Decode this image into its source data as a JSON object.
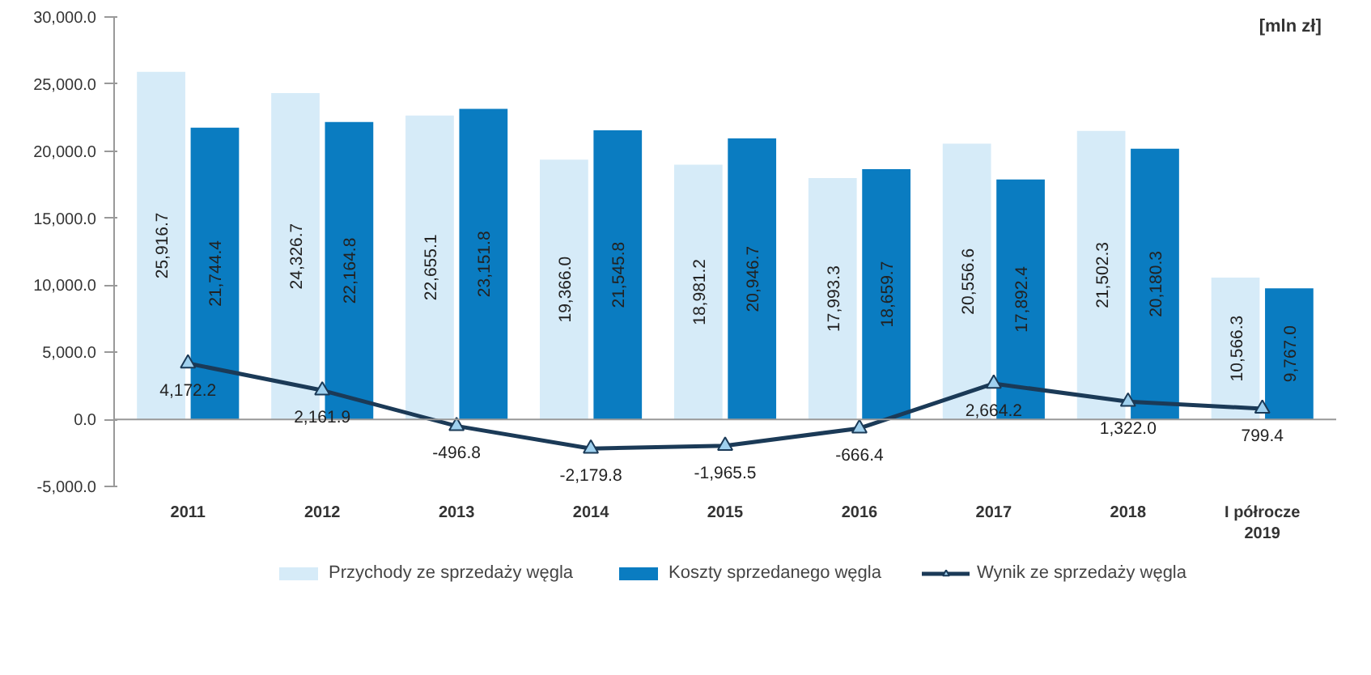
{
  "chart_data": {
    "type": "bar",
    "categories": [
      "2011",
      "2012",
      "2013",
      "2014",
      "2015",
      "2016",
      "2017",
      "2018",
      "I półrocze\n2019"
    ],
    "series": [
      {
        "name": "Przychody ze sprzedaży węgla",
        "color": "#d6ebf8",
        "values": [
          25916.7,
          24326.7,
          22655.1,
          19366.0,
          18981.2,
          17993.3,
          20556.6,
          21502.3,
          10566.3
        ],
        "value_labels": [
          "25,916.7",
          "24,326.7",
          "22,655.1",
          "19,366.0",
          "18,981.2",
          "17,993.3",
          "20,556.6",
          "21,502.3",
          "10,566.3"
        ]
      },
      {
        "name": "Koszty sprzedanego węgla",
        "color": "#0a7cc1",
        "values": [
          21744.4,
          22164.8,
          23151.8,
          21545.8,
          20946.7,
          18659.7,
          17892.4,
          20180.3,
          9767.0
        ],
        "value_labels": [
          "21,744.4",
          "22,164.8",
          "23,151.8",
          "21,545.8",
          "20,946.7",
          "18,659.7",
          "17,892.4",
          "20,180.3",
          "9,767.0"
        ]
      },
      {
        "name": "Wynik ze sprzedaży węgla",
        "type": "line",
        "marker": "triangle",
        "color": "#1b3a57",
        "values": [
          4172.2,
          2161.9,
          -496.8,
          -2179.8,
          -1965.5,
          -666.4,
          2664.2,
          1322.0,
          799.4
        ],
        "value_labels": [
          "4,172.2",
          "2,161.9",
          "-496.8",
          "-2,179.8",
          "-1,965.5",
          "-666.4",
          "2,664.2",
          "1,322.0",
          "799.4"
        ]
      }
    ],
    "ylim": [
      -5000,
      30000
    ],
    "yticks": [
      {
        "value": -5000,
        "label": "-5,000.0"
      },
      {
        "value": 0,
        "label": "0.0"
      },
      {
        "value": 5000,
        "label": "5,000.0"
      },
      {
        "value": 10000,
        "label": "10,000.0"
      },
      {
        "value": 15000,
        "label": "15,000.0"
      },
      {
        "value": 20000,
        "label": "20,000.0"
      },
      {
        "value": 25000,
        "label": "25,000.0"
      },
      {
        "value": 30000,
        "label": "30,000.0"
      }
    ],
    "annotations": [
      "[mln zł]"
    ],
    "legend": "bottom"
  }
}
